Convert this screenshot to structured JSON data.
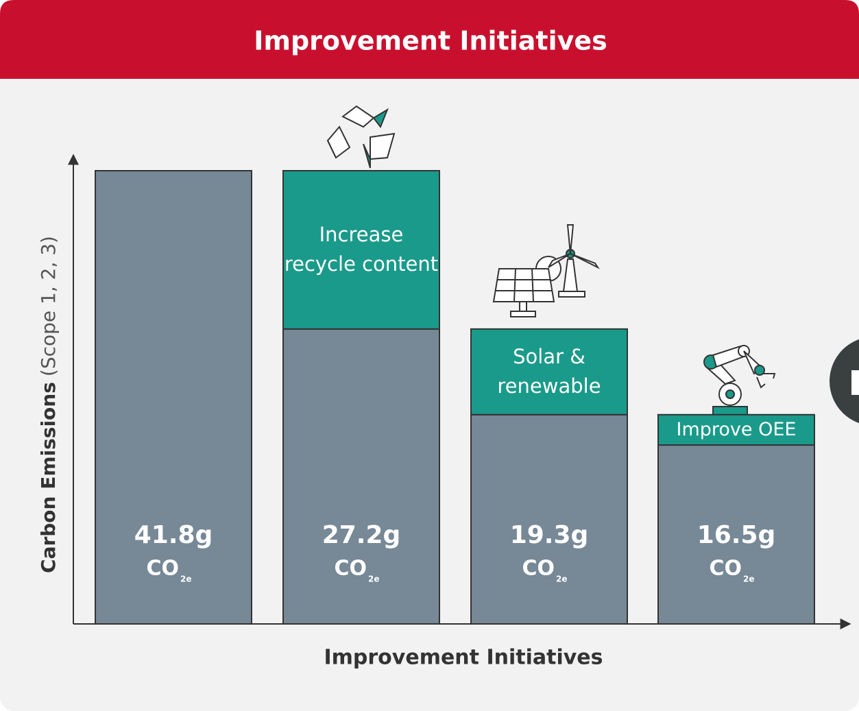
{
  "header": {
    "title": "Improvement Initiatives"
  },
  "chart_data": {
    "type": "bar",
    "ylabel_bold": "Carbon Emissions",
    "ylabel_rest": "(Scope 1, 2, 3)",
    "xlabel": "Improvement Initiatives",
    "ylim": [
      0,
      43
    ],
    "unit_base": "CO",
    "unit_sub": "2e",
    "series": [
      {
        "color": "#778896",
        "values": [
          41.8,
          27.2,
          19.3,
          16.5
        ],
        "value_labels": [
          "41.8g",
          "27.2g",
          "19.3g",
          "16.5g"
        ]
      },
      {
        "color": "#1a9a8a",
        "values": [
          null,
          14.6,
          7.9,
          2.8
        ],
        "labels": [
          null,
          "Increase recycle content",
          "Solar & renewable",
          "Improve OEE"
        ]
      }
    ]
  }
}
